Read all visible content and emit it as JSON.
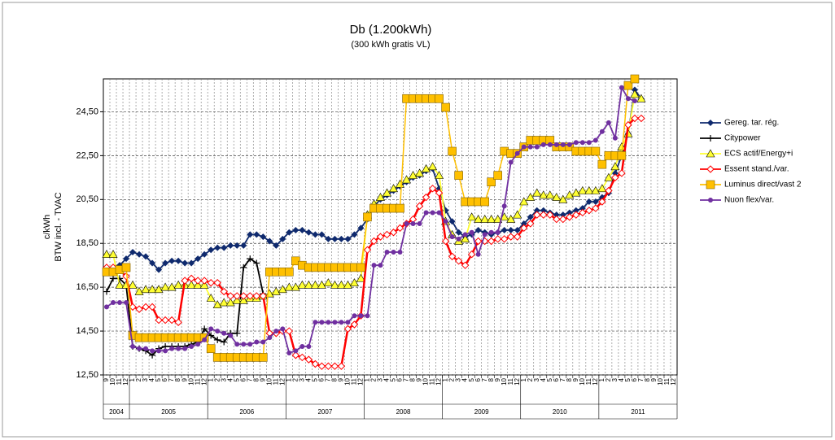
{
  "chart_data": {
    "type": "line",
    "title": "Db (1.200kWh)",
    "subtitle": "(300 kWh gratis VL)",
    "y_label": [
      "c/kWh",
      "BTW incl. - TVAC"
    ],
    "categories": [
      9,
      10,
      11,
      12,
      1,
      2,
      3,
      4,
      5,
      6,
      7,
      8,
      9,
      10,
      11,
      12,
      1,
      2,
      3,
      4,
      5,
      6,
      7,
      8,
      9,
      10,
      11,
      12,
      1,
      2,
      3,
      4,
      5,
      6,
      7,
      8,
      9,
      10,
      11,
      12,
      1,
      2,
      3,
      4,
      5,
      6,
      7,
      8,
      9,
      10,
      11,
      12,
      1,
      2,
      3,
      4,
      5,
      6,
      7,
      8,
      9,
      10,
      11,
      12,
      1,
      2,
      3,
      4,
      5,
      6,
      7,
      8,
      9,
      10,
      11,
      12,
      1,
      2,
      3,
      4,
      5,
      6,
      7,
      8,
      9,
      10,
      11,
      12
    ],
    "years": [
      "2004",
      "2005",
      "2006",
      "2007",
      "2008",
      "2009",
      "2010",
      "2011"
    ],
    "ylim": [
      12.5,
      26
    ],
    "yticks": [
      {
        "value": 12.5,
        "label": "12,50"
      },
      {
        "value": 14.5,
        "label": "14,50"
      },
      {
        "value": 16.5,
        "label": "16,50"
      },
      {
        "value": 18.5,
        "label": "18,50"
      },
      {
        "value": 20.5,
        "label": "20,50"
      },
      {
        "value": 22.5,
        "label": "22,50"
      },
      {
        "value": 24.5,
        "label": "24,50"
      }
    ],
    "grid": true,
    "legend": "right",
    "series": [
      {
        "name": "Gereg. tar. rég.",
        "color": "#0f2a6e",
        "marker": "diamond",
        "values": [
          17.3,
          17.3,
          17.5,
          17.8,
          18.1,
          18.0,
          17.9,
          17.6,
          17.3,
          17.6,
          17.7,
          17.7,
          17.6,
          17.6,
          17.8,
          18.0,
          18.2,
          18.3,
          18.3,
          18.4,
          18.4,
          18.4,
          18.9,
          18.9,
          18.8,
          18.6,
          18.4,
          18.7,
          19.0,
          19.1,
          19.1,
          19.0,
          18.9,
          18.9,
          18.7,
          18.7,
          18.7,
          18.7,
          18.9,
          19.2,
          19.6,
          20.2,
          20.5,
          20.7,
          20.9,
          21.1,
          21.3,
          21.5,
          21.6,
          21.8,
          21.9,
          21.0,
          20.0,
          19.5,
          19.0,
          18.8,
          18.9,
          19.1,
          19.0,
          18.9,
          19.0,
          19.1,
          19.1,
          19.1,
          19.4,
          19.7,
          20.0,
          20.0,
          19.9,
          19.8,
          19.8,
          19.9,
          20.0,
          20.1,
          20.4,
          20.4,
          20.6,
          20.8,
          21.7,
          22.5,
          23.5,
          25.5,
          25.1,
          null,
          null,
          null,
          null,
          null
        ]
      },
      {
        "name": "Citypower",
        "color": "#000000",
        "marker": "plus",
        "values": [
          16.3,
          16.9,
          16.9,
          16.6,
          13.8,
          13.7,
          13.6,
          13.4,
          13.7,
          13.8,
          13.8,
          13.8,
          13.8,
          13.9,
          14.0,
          14.6,
          14.3,
          14.1,
          14.0,
          14.4,
          14.4,
          17.4,
          17.8,
          17.6,
          16.2,
          null,
          null,
          null,
          null,
          null,
          null,
          null,
          null,
          null,
          null,
          null,
          null,
          null,
          null,
          null,
          null,
          null,
          null,
          null,
          null,
          null,
          null,
          null,
          null,
          null,
          null,
          null,
          null,
          null,
          null,
          null,
          null,
          null,
          null,
          null,
          null,
          null,
          null,
          null,
          null,
          null,
          null,
          null,
          null,
          null,
          null,
          null,
          null,
          null,
          null,
          null,
          null,
          null,
          null,
          null,
          null,
          null,
          null,
          null,
          null,
          null,
          null,
          null
        ]
      },
      {
        "name": "ECS actif/Energy+i",
        "color": "#ffff33",
        "marker": "triangle",
        "values": [
          18.0,
          18.0,
          16.6,
          16.6,
          16.6,
          16.3,
          16.4,
          16.4,
          16.4,
          16.5,
          16.5,
          16.6,
          16.6,
          16.6,
          16.6,
          16.6,
          16.0,
          15.7,
          15.8,
          15.8,
          15.9,
          15.9,
          16.0,
          16.0,
          16.1,
          16.2,
          16.3,
          16.4,
          16.5,
          16.5,
          16.6,
          16.6,
          16.6,
          16.6,
          16.7,
          16.6,
          16.6,
          16.6,
          16.7,
          16.9,
          19.8,
          20.3,
          20.6,
          20.8,
          21.0,
          21.2,
          21.4,
          21.6,
          21.7,
          21.9,
          22.0,
          21.6,
          19.5,
          18.9,
          18.6,
          18.7,
          19.7,
          19.6,
          19.6,
          19.6,
          19.6,
          19.7,
          19.6,
          19.8,
          20.4,
          20.6,
          20.8,
          20.7,
          20.7,
          20.6,
          20.5,
          20.7,
          20.8,
          20.9,
          20.9,
          20.9,
          21.0,
          21.5,
          22.0,
          22.9,
          23.5,
          25.3,
          25.1,
          null,
          null,
          null,
          null,
          null
        ]
      },
      {
        "name": "Essent stand./var.",
        "color": "#ff0000",
        "marker": "hollow-diamond",
        "values": [
          17.4,
          17.4,
          17.3,
          17.0,
          15.6,
          15.5,
          15.6,
          15.6,
          15.0,
          15.0,
          15.0,
          14.9,
          16.8,
          16.9,
          16.8,
          16.8,
          16.7,
          16.7,
          16.3,
          16.1,
          16.1,
          16.1,
          16.1,
          16.1,
          16.1,
          14.4,
          14.4,
          14.5,
          14.5,
          13.4,
          13.3,
          13.2,
          13.0,
          12.9,
          12.9,
          12.9,
          12.9,
          14.6,
          14.8,
          15.2,
          18.2,
          18.6,
          18.8,
          18.9,
          19.0,
          19.2,
          19.4,
          19.6,
          20.2,
          20.6,
          21.0,
          20.8,
          18.6,
          17.9,
          17.7,
          17.5,
          18.0,
          18.6,
          18.6,
          18.6,
          18.7,
          18.7,
          18.8,
          18.8,
          19.2,
          19.4,
          19.8,
          19.8,
          19.8,
          19.6,
          19.6,
          19.7,
          19.8,
          19.9,
          20.0,
          20.1,
          20.4,
          20.9,
          21.5,
          21.7,
          23.9,
          24.2,
          24.2,
          null,
          null,
          null,
          null,
          null
        ]
      },
      {
        "name": "Luminus direct/vast 2",
        "color": "#ffc000",
        "marker": "square",
        "values": [
          17.2,
          17.2,
          17.3,
          17.4,
          14.3,
          14.2,
          14.2,
          14.2,
          14.2,
          14.2,
          14.2,
          14.2,
          14.2,
          14.2,
          14.2,
          14.2,
          13.7,
          13.3,
          13.3,
          13.3,
          13.3,
          13.3,
          13.3,
          13.3,
          13.3,
          17.2,
          17.2,
          17.2,
          17.2,
          17.7,
          17.5,
          17.4,
          17.4,
          17.4,
          17.4,
          17.4,
          17.4,
          17.4,
          17.4,
          17.4,
          19.7,
          20.1,
          20.1,
          20.1,
          20.1,
          20.1,
          25.1,
          25.1,
          25.1,
          25.1,
          25.1,
          25.1,
          24.7,
          22.7,
          21.6,
          20.4,
          20.4,
          20.4,
          20.4,
          21.3,
          21.6,
          22.7,
          22.6,
          22.6,
          22.9,
          23.2,
          23.2,
          23.2,
          23.2,
          22.9,
          22.9,
          22.9,
          22.7,
          22.7,
          22.7,
          22.7,
          22.1,
          22.5,
          22.5,
          22.5,
          25.7,
          26.0,
          null,
          null,
          null,
          null,
          null,
          null
        ]
      },
      {
        "name": "Nuon flex/var.",
        "color": "#7030a0",
        "marker": "circle",
        "values": [
          15.6,
          15.8,
          15.8,
          15.8,
          13.8,
          13.7,
          13.7,
          13.6,
          13.6,
          13.6,
          13.7,
          13.7,
          13.7,
          13.8,
          13.9,
          14.1,
          14.6,
          14.5,
          14.4,
          14.3,
          13.9,
          13.9,
          13.9,
          14.0,
          14.0,
          14.2,
          14.5,
          14.6,
          13.5,
          13.6,
          13.8,
          13.8,
          14.9,
          14.9,
          14.9,
          14.9,
          14.9,
          14.9,
          15.2,
          15.2,
          15.2,
          17.5,
          17.5,
          18.1,
          18.1,
          18.1,
          19.4,
          19.4,
          19.4,
          19.9,
          19.9,
          19.9,
          19.5,
          18.8,
          18.7,
          18.9,
          19.0,
          18.0,
          18.9,
          19.0,
          19.0,
          20.2,
          22.2,
          22.6,
          22.9,
          22.9,
          22.9,
          23.0,
          23.0,
          23.0,
          23.0,
          23.0,
          23.1,
          23.1,
          23.1,
          23.2,
          23.6,
          24.0,
          23.3,
          25.6,
          25.1,
          25.0,
          null,
          null,
          null,
          null,
          null,
          null
        ]
      }
    ]
  }
}
